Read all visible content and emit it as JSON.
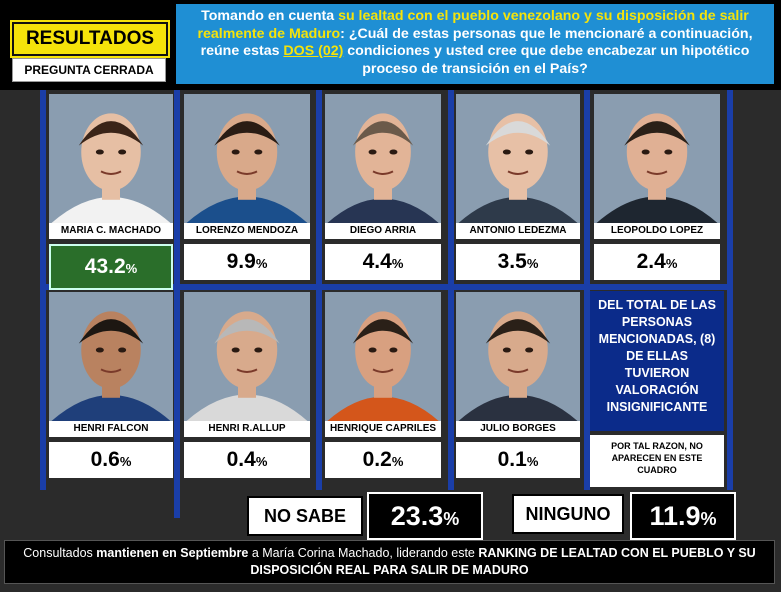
{
  "header": {
    "results_label": "RESULTADOS",
    "question_type": "PREGUNTA CERRADA",
    "question_part1": "Tomando en cuenta ",
    "question_highlight1": "su lealtad con el pueblo venezolano y su disposición de salir realmente de Maduro",
    "question_part2": ": ¿Cuál de estas personas que le mencionaré a continuación, reúne estas ",
    "question_highlight2": "DOS (02)",
    "question_part3": " condiciones y usted cree que debe encabezar un hipotético proceso de transición en el País?"
  },
  "note": {
    "main": "DEL TOTAL DE LAS PERSONAS MENCIONADAS, (8) DE ELLAS TUVIERON VALORACIÓN INSIGNIFICANTE",
    "sub": "POR TAL RAZON, NO APARECEN EN ESTE CUADRO"
  },
  "extra": {
    "no_sabe_label": "NO SABE",
    "no_sabe_value": "23.3",
    "ninguno_label": "NINGUNO",
    "ninguno_value": "11.9",
    "percent_sign": "%"
  },
  "footer": {
    "part1": "Consultados ",
    "bold1": "mantienen en Septiembre",
    "part2": " a María Corina Machado,  liderando este ",
    "bold2": "RANKING DE LEALTAD CON EL PUEBLO Y SU  DISPOSICIÓN REAL PARA SALIR DE MADURO"
  },
  "colors": {
    "grid_blue": "#1a3ea8",
    "header_blue": "#1f8fd4",
    "highlight_yellow": "#f5e30a",
    "top_green": "#2a6e2a",
    "note_navy": "#0b2b8a"
  },
  "chart_data": {
    "type": "bar",
    "categories": [
      "MARIA C. MACHADO",
      "LORENZO MENDOZA",
      "DIEGO ARRIA",
      "ANTONIO LEDEZMA",
      "LEOPOLDO LOPEZ",
      "HENRI FALCON",
      "HENRI R.ALLUP",
      "HENRIQUE CAPRILES",
      "JULIO BORGES",
      "NO SABE",
      "NINGUNO"
    ],
    "values": [
      43.2,
      9.9,
      4.4,
      3.5,
      2.4,
      0.6,
      0.4,
      0.2,
      0.1,
      23.3,
      11.9
    ],
    "unit": "%",
    "candidates": [
      {
        "name": "MARIA C. MACHADO",
        "value": "43.2",
        "skin": "#e6bfa4",
        "hair": "#3a2418",
        "shirt": "#f2f2f2"
      },
      {
        "name": "LORENZO MENDOZA",
        "value": "9.9",
        "skin": "#d9a98a",
        "hair": "#2a1c14",
        "shirt": "#1b4f8c"
      },
      {
        "name": "DIEGO ARRIA",
        "value": "4.4",
        "skin": "#e2b497",
        "hair": "#6b5a4a",
        "shirt": "#273553"
      },
      {
        "name": "ANTONIO LEDEZMA",
        "value": "3.5",
        "skin": "#e7c0a6",
        "hair": "#d9d9d9",
        "shirt": "#2e3a4a"
      },
      {
        "name": "LEOPOLDO LOPEZ",
        "value": "2.4",
        "skin": "#e0b094",
        "hair": "#2a2018",
        "shirt": "#1e2630"
      },
      {
        "name": "HENRI FALCON",
        "value": "0.6",
        "skin": "#b98260",
        "hair": "#1d1712",
        "shirt": "#1f3f7a"
      },
      {
        "name": "HENRI R.ALLUP",
        "value": "0.4",
        "skin": "#d8aa8c",
        "hair": "#b8b8b8",
        "shirt": "#d9d9d9"
      },
      {
        "name": "HENRIQUE CAPRILES",
        "value": "0.2",
        "skin": "#d8a080",
        "hair": "#2a2018",
        "shirt": "#d4561b"
      },
      {
        "name": "JULIO BORGES",
        "value": "0.1",
        "skin": "#d8aa8c",
        "hair": "#2a2018",
        "shirt": "#2a3140"
      }
    ]
  }
}
